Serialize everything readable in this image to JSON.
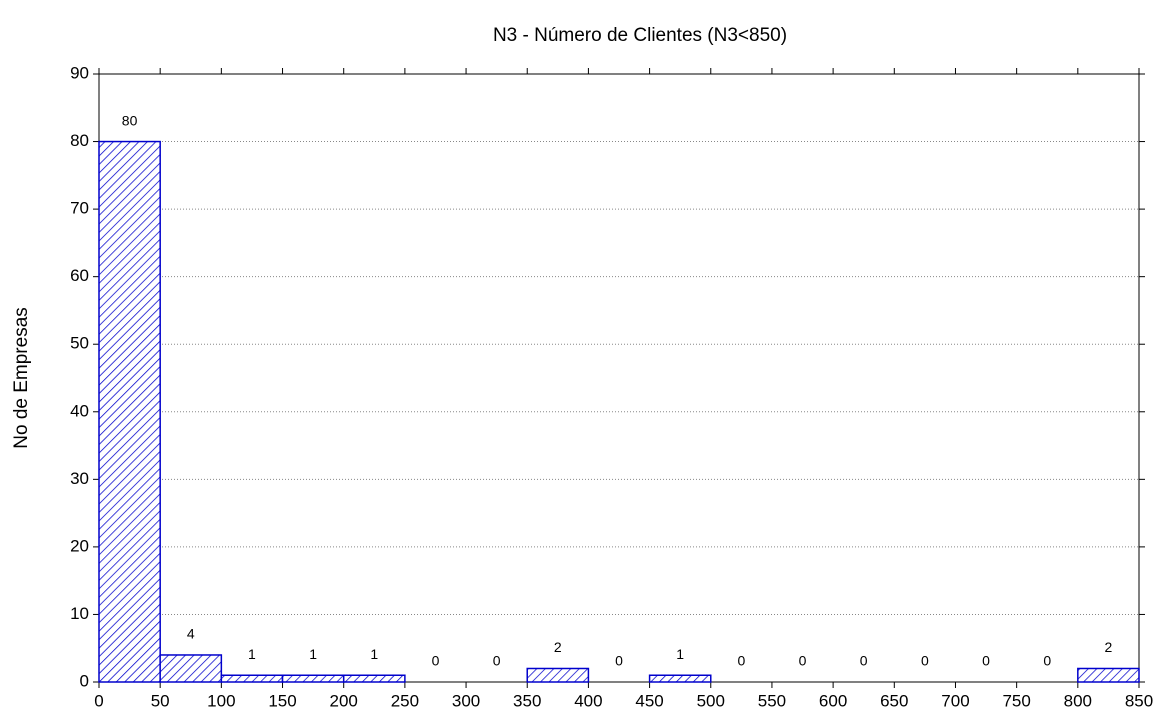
{
  "chart_data": {
    "type": "histogram",
    "title": "N3 - Número de Clientes (N3<850)",
    "y_label": "No de Empresas",
    "bins": [
      0,
      50,
      100,
      150,
      200,
      250,
      300,
      350,
      400,
      450,
      500,
      550,
      600,
      650,
      700,
      750,
      800,
      850
    ],
    "values": [
      80,
      4,
      1,
      1,
      1,
      0,
      0,
      2,
      0,
      1,
      0,
      0,
      0,
      0,
      0,
      0,
      2
    ],
    "color": "#0000cc",
    "xlim": [
      0,
      850
    ],
    "xticks": [
      0,
      50,
      100,
      150,
      200,
      250,
      300,
      350,
      400,
      450,
      500,
      550,
      600,
      650,
      700,
      750,
      800,
      850
    ],
    "ylim": [
      0,
      90
    ],
    "yticks": [
      0,
      10,
      20,
      30,
      40,
      50,
      60,
      70,
      80,
      90
    ],
    "grid": true
  }
}
